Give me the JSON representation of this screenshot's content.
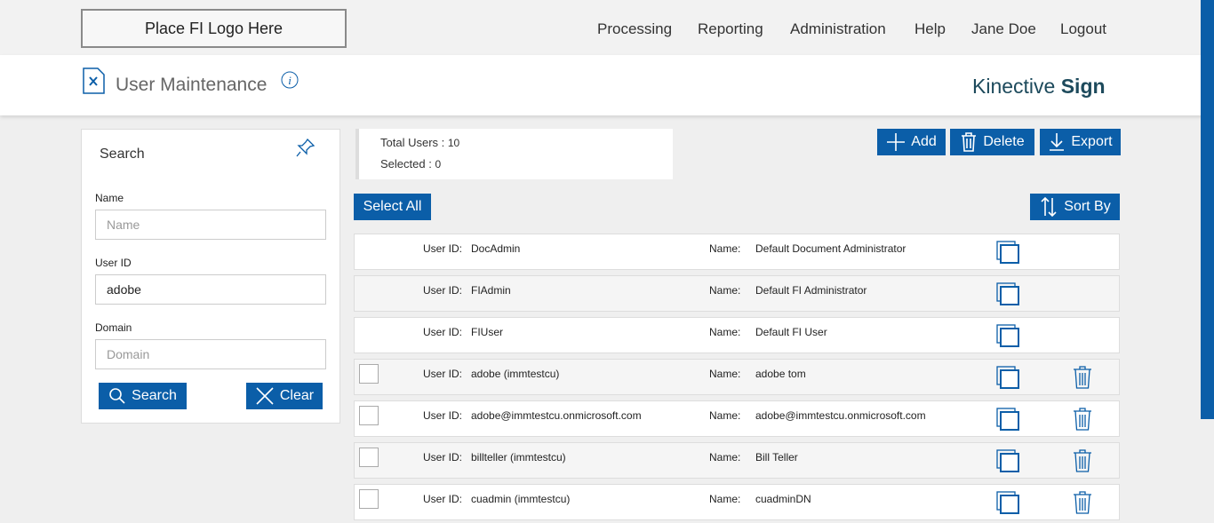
{
  "header": {
    "logo": "Place FI Logo Here",
    "nav": [
      "Processing",
      "Reporting",
      "Administration",
      "Help",
      "Jane Doe",
      "Logout"
    ],
    "page_title": "User Maintenance",
    "brand": "Kinective",
    "brand_bold": "Sign"
  },
  "search": {
    "title": "Search",
    "fields": [
      {
        "label": "Name",
        "placeholder": "Name"
      },
      {
        "label": "User ID",
        "value": "adobe"
      },
      {
        "label": "Domain",
        "placeholder": "Domain"
      }
    ],
    "search_button": "Search",
    "clear_button": "Clear"
  },
  "summary": {
    "total_label": "Total Users :",
    "total": 10,
    "selected_label": "Selected :",
    "selected": 0
  },
  "toolbar": {
    "add": "Add",
    "delete": "Delete",
    "export": "Export",
    "select_all": "Select All",
    "sort_by": "Sort By"
  },
  "list": {
    "user_id_label": "User ID:",
    "name_label": "Name:",
    "rows": [
      {
        "user_id": "DocAdmin",
        "name": "Default Document Administrator",
        "selectable": false
      },
      {
        "user_id": "FIAdmin",
        "name": "Default FI Administrator",
        "selectable": false
      },
      {
        "user_id": "FIUser",
        "name": "Default FI User",
        "selectable": false
      },
      {
        "user_id": "adobe (immtestcu)",
        "name": "adobe tom",
        "selectable": true
      },
      {
        "user_id": "adobe@immtestcu.onmicrosoft.com",
        "name": "adobe@immtestcu.onmicrosoft.com",
        "selectable": true
      },
      {
        "user_id": "billteller (immtestcu)",
        "name": "Bill Teller",
        "selectable": true
      },
      {
        "user_id": "cuadmin (immtestcu)",
        "name": "cuadminDN",
        "selectable": true
      }
    ]
  }
}
